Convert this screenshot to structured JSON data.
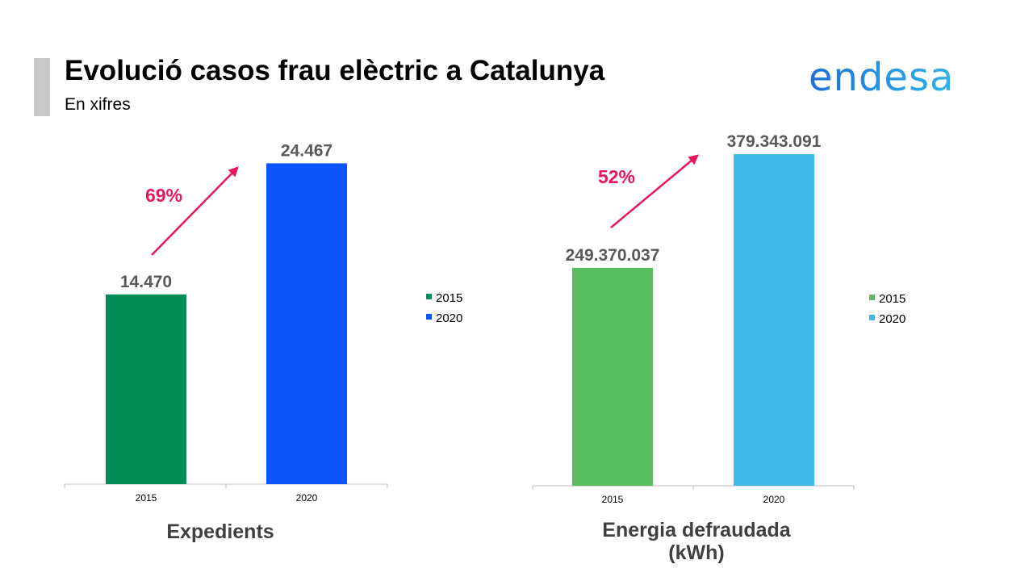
{
  "header": {
    "title": "Evolució casos frau elèctric a Catalunya",
    "subtitle": "En xifres",
    "logo_text": "endesa"
  },
  "colors": {
    "title_accent": "#c9c9c9",
    "arrow": "#e8175d",
    "logo_gradient": [
      "#1e6fd9",
      "#2fb5e8"
    ]
  },
  "chart_data": [
    {
      "type": "bar",
      "categories": [
        "2015",
        "2020"
      ],
      "values": [
        14470,
        24467
      ],
      "value_labels": [
        "14.470",
        "24.467"
      ],
      "colors": [
        "#038c58",
        "#0b55fa"
      ],
      "legend": [
        "2015",
        "2020"
      ],
      "legend_position": "right",
      "title_lines": [
        "Expedients"
      ],
      "growth_label": "69%",
      "grid": false
    },
    {
      "type": "bar",
      "categories": [
        "2015",
        "2020"
      ],
      "values": [
        249370037,
        379343091
      ],
      "value_labels": [
        "249.370.037",
        "379.343.091"
      ],
      "colors": [
        "#57bd5f",
        "#40b9e6"
      ],
      "legend": [
        "2015",
        "2020"
      ],
      "legend_position": "right",
      "title_lines": [
        "Energia defraudada",
        "(kWh)"
      ],
      "growth_label": "52%",
      "grid": false
    }
  ]
}
